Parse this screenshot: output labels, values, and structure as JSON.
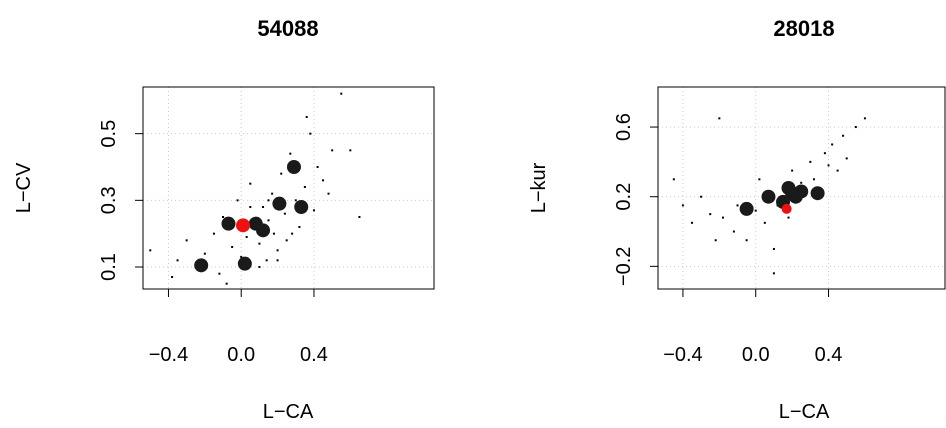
{
  "chart_data": [
    {
      "type": "scatter",
      "title": "54088",
      "x_label": "L−CA",
      "y_label": "L−CV",
      "xlim": [
        -0.54,
        1.06
      ],
      "ylim": [
        0.034,
        0.64
      ],
      "xticks": [
        {
          "value": -0.4,
          "label": "−0.4"
        },
        {
          "value": 0,
          "label": "0.0"
        },
        0.4
      ],
      "yticks": [
        0.1,
        0.3,
        0.5
      ],
      "grid": true,
      "series": [
        {
          "color": "#000000",
          "size": 2,
          "x": [
            -0.5,
            -0.38,
            -0.35,
            -0.3,
            -0.25,
            -0.2,
            -0.15,
            -0.12,
            -0.1,
            -0.05,
            -0.02,
            0,
            0.03,
            0.05,
            0.08,
            0.1,
            0.12,
            0.14,
            0.15,
            0.17,
            0.18,
            0.2,
            0.22,
            0.24,
            0.25,
            0.27,
            0.3,
            0.32,
            0.35,
            0.38,
            0.4,
            0.42,
            0.45,
            0.48,
            0.5,
            0.55,
            0.6,
            0.65,
            0.1,
            0.2,
            0.05,
            -0.08,
            0.15,
            0.28,
            0.36
          ],
          "values": [
            0.15,
            0.07,
            0.12,
            0.18,
            0.1,
            0.14,
            0.2,
            0.08,
            0.25,
            0.16,
            0.3,
            0.13,
            0.19,
            0.35,
            0.22,
            0.17,
            0.28,
            0.12,
            0.24,
            0.32,
            0.2,
            0.15,
            0.38,
            0.26,
            0.18,
            0.44,
            0.3,
            0.22,
            0.34,
            0.5,
            0.27,
            0.4,
            0.36,
            0.32,
            0.45,
            0.62,
            0.45,
            0.25,
            0.1,
            0.12,
            0.28,
            0.05,
            0.3,
            0.2,
            0.55
          ]
        },
        {
          "color": "#1a1a1a",
          "size": 7,
          "x": [
            -0.22,
            -0.07,
            0.02,
            0.08,
            0.21,
            0.29,
            0.33,
            0.12
          ],
          "values": [
            0.105,
            0.23,
            0.11,
            0.23,
            0.29,
            0.4,
            0.28,
            0.21
          ]
        },
        {
          "color": "#ee1111",
          "size": 7,
          "x": [
            0.01
          ],
          "values": [
            0.225
          ]
        }
      ]
    },
    {
      "type": "scatter",
      "title": "28018",
      "x_label": "L−CA",
      "y_label": "L−kur",
      "xlim": [
        -0.537,
        1.04
      ],
      "ylim": [
        -0.33,
        0.83
      ],
      "xticks": [
        {
          "value": -0.4,
          "label": "−0.4"
        },
        {
          "value": 0,
          "label": "0.0"
        },
        0.4
      ],
      "yticks": [
        {
          "value": -0.2,
          "label": "−0.2"
        },
        0.2,
        0.6
      ],
      "grid": true,
      "series": [
        {
          "color": "#000000",
          "size": 2,
          "x": [
            -0.45,
            -0.4,
            -0.35,
            -0.3,
            -0.25,
            -0.2,
            -0.18,
            -0.12,
            -0.1,
            -0.05,
            0,
            0.02,
            0.05,
            0.08,
            0.1,
            0.12,
            0.15,
            0.18,
            0.2,
            0.22,
            0.25,
            0.28,
            0.3,
            0.32,
            0.35,
            0.38,
            0.4,
            0.42,
            0.45,
            0.48,
            0.5,
            0.55,
            0.6,
            -0.22,
            0.1
          ],
          "values": [
            0.3,
            0.15,
            0.05,
            0.2,
            0.1,
            0.65,
            0.08,
            0.0,
            0.15,
            -0.05,
            0.12,
            0.3,
            0.05,
            0.2,
            -0.1,
            0.15,
            0.25,
            0.08,
            0.35,
            0.18,
            0.28,
            0.22,
            0.4,
            0.3,
            0.25,
            0.45,
            0.38,
            0.5,
            0.35,
            0.55,
            0.42,
            0.6,
            0.65,
            -0.05,
            -0.24
          ]
        },
        {
          "color": "#1a1a1a",
          "size": 7,
          "x": [
            -0.05,
            0.07,
            0.18,
            0.2,
            0.22,
            0.34,
            0.15,
            0.25
          ],
          "values": [
            0.13,
            0.2,
            0.25,
            0.22,
            0.2,
            0.22,
            0.17,
            0.23
          ]
        },
        {
          "color": "#ee1111",
          "size": 5,
          "x": [
            0.17
          ],
          "values": [
            0.13
          ]
        }
      ]
    }
  ]
}
